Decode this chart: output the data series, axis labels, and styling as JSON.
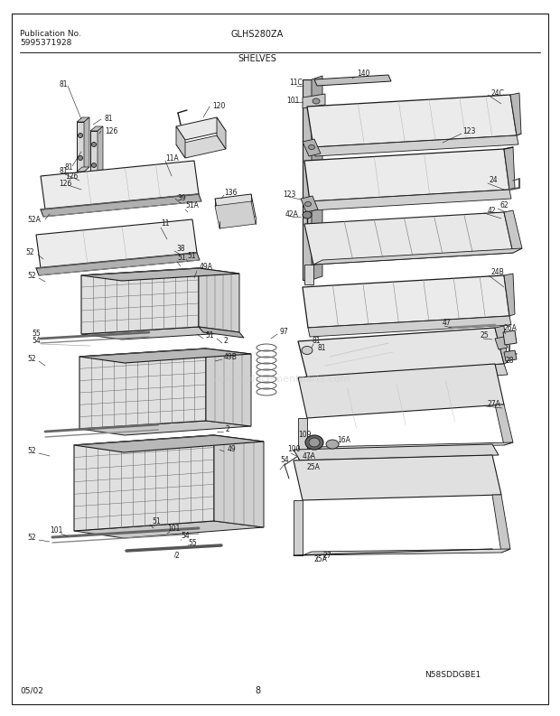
{
  "title_model": "GLHS280ZA",
  "title_section": "SHELVES",
  "pub_no_label": "Publication No.",
  "pub_no": "5995371928",
  "date": "05/02",
  "page": "8",
  "diagram_id": "N58SDDGBE1",
  "background_color": "#ffffff",
  "line_color": "#1a1a1a",
  "fig_width": 6.2,
  "fig_height": 7.93,
  "dpi": 100
}
